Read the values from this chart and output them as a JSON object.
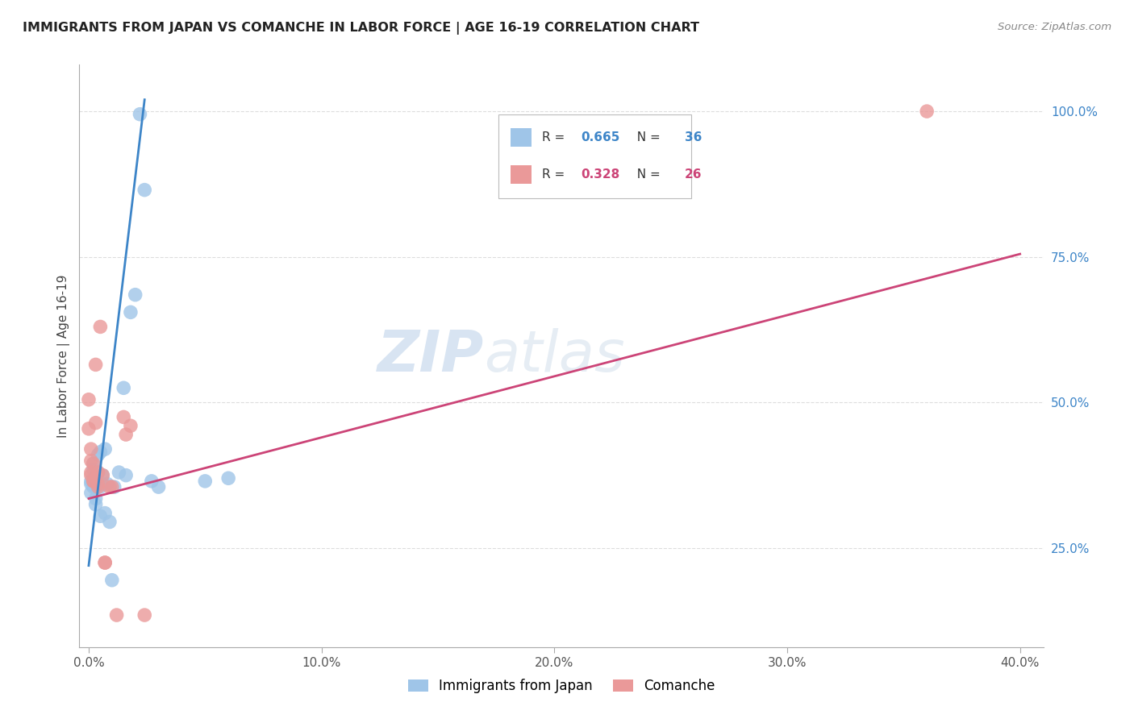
{
  "title": "IMMIGRANTS FROM JAPAN VS COMANCHE IN LABOR FORCE | AGE 16-19 CORRELATION CHART",
  "source": "Source: ZipAtlas.com",
  "ylabel": "In Labor Force | Age 16-19",
  "legend1_label": "Immigrants from Japan",
  "legend2_label": "Comanche",
  "r1": 0.665,
  "n1": 36,
  "r2": 0.328,
  "n2": 26,
  "blue_color": "#9fc5e8",
  "pink_color": "#ea9999",
  "blue_line_color": "#3d85c8",
  "pink_line_color": "#cc4477",
  "blue_scatter": [
    [
      0.001,
      0.365
    ],
    [
      0.001,
      0.345
    ],
    [
      0.001,
      0.36
    ],
    [
      0.002,
      0.385
    ],
    [
      0.002,
      0.355
    ],
    [
      0.002,
      0.395
    ],
    [
      0.003,
      0.375
    ],
    [
      0.003,
      0.355
    ],
    [
      0.003,
      0.325
    ],
    [
      0.003,
      0.335
    ],
    [
      0.004,
      0.365
    ],
    [
      0.004,
      0.41
    ],
    [
      0.004,
      0.36
    ],
    [
      0.004,
      0.38
    ],
    [
      0.005,
      0.415
    ],
    [
      0.005,
      0.355
    ],
    [
      0.005,
      0.305
    ],
    [
      0.006,
      0.375
    ],
    [
      0.006,
      0.36
    ],
    [
      0.007,
      0.42
    ],
    [
      0.007,
      0.31
    ],
    [
      0.008,
      0.36
    ],
    [
      0.009,
      0.295
    ],
    [
      0.01,
      0.195
    ],
    [
      0.011,
      0.355
    ],
    [
      0.013,
      0.38
    ],
    [
      0.015,
      0.525
    ],
    [
      0.016,
      0.375
    ],
    [
      0.018,
      0.655
    ],
    [
      0.02,
      0.685
    ],
    [
      0.022,
      0.995
    ],
    [
      0.024,
      0.865
    ],
    [
      0.027,
      0.365
    ],
    [
      0.03,
      0.355
    ],
    [
      0.05,
      0.365
    ],
    [
      0.06,
      0.37
    ]
  ],
  "pink_scatter": [
    [
      0.0,
      0.455
    ],
    [
      0.0,
      0.505
    ],
    [
      0.001,
      0.375
    ],
    [
      0.001,
      0.42
    ],
    [
      0.001,
      0.4
    ],
    [
      0.001,
      0.38
    ],
    [
      0.002,
      0.365
    ],
    [
      0.002,
      0.395
    ],
    [
      0.002,
      0.365
    ],
    [
      0.003,
      0.565
    ],
    [
      0.003,
      0.465
    ],
    [
      0.004,
      0.38
    ],
    [
      0.004,
      0.355
    ],
    [
      0.004,
      0.36
    ],
    [
      0.005,
      0.63
    ],
    [
      0.006,
      0.375
    ],
    [
      0.007,
      0.225
    ],
    [
      0.007,
      0.225
    ],
    [
      0.009,
      0.355
    ],
    [
      0.01,
      0.355
    ],
    [
      0.012,
      0.135
    ],
    [
      0.015,
      0.475
    ],
    [
      0.016,
      0.445
    ],
    [
      0.018,
      0.46
    ],
    [
      0.024,
      0.135
    ],
    [
      0.36,
      1.0
    ]
  ],
  "blue_trendline_x": [
    0.0,
    0.024
  ],
  "blue_trendline_y": [
    0.22,
    1.02
  ],
  "pink_trendline_x": [
    0.0,
    0.4
  ],
  "pink_trendline_y": [
    0.335,
    0.755
  ],
  "xlim": [
    -0.004,
    0.41
  ],
  "ylim": [
    0.08,
    1.08
  ],
  "x_ticks": [
    0.0,
    0.1,
    0.2,
    0.3,
    0.4
  ],
  "y_ticks": [
    0.25,
    0.5,
    0.75,
    1.0
  ],
  "watermark_zip": "ZIP",
  "watermark_atlas": "atlas",
  "background_color": "#ffffff",
  "grid_color": "#dddddd"
}
